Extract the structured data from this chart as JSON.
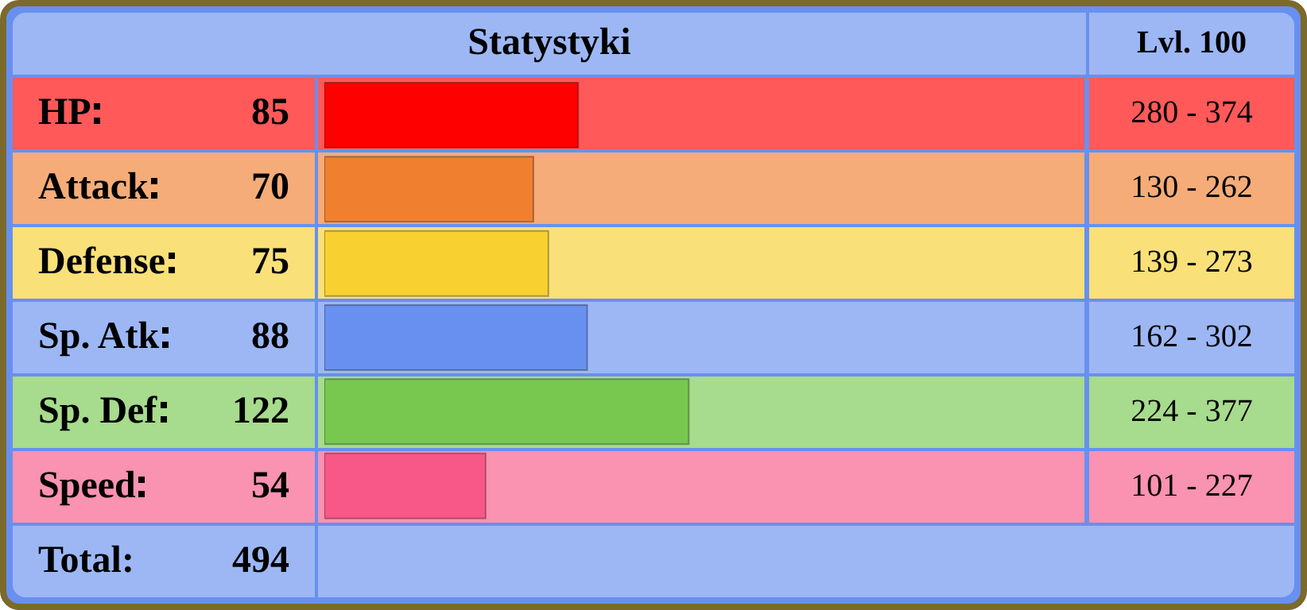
{
  "chart_data": {
    "type": "bar",
    "orientation": "horizontal",
    "title": "Statystyki",
    "categories": [
      "HP",
      "Attack",
      "Defense",
      "Sp. Atk",
      "Sp. Def",
      "Speed"
    ],
    "values": [
      85,
      70,
      75,
      88,
      122,
      54
    ],
    "colors": [
      "#ff0000",
      "#f08030",
      "#f8d030",
      "#6890f0",
      "#78c850",
      "#f85888"
    ],
    "xlim": [
      0,
      255
    ],
    "data_labels": true,
    "annotations": [
      "Lvl. 100",
      "280 - 374",
      "130 - 262",
      "139 - 273",
      "162 - 302",
      "224 - 377",
      "101 - 227",
      "Total:",
      "494"
    ]
  }
}
